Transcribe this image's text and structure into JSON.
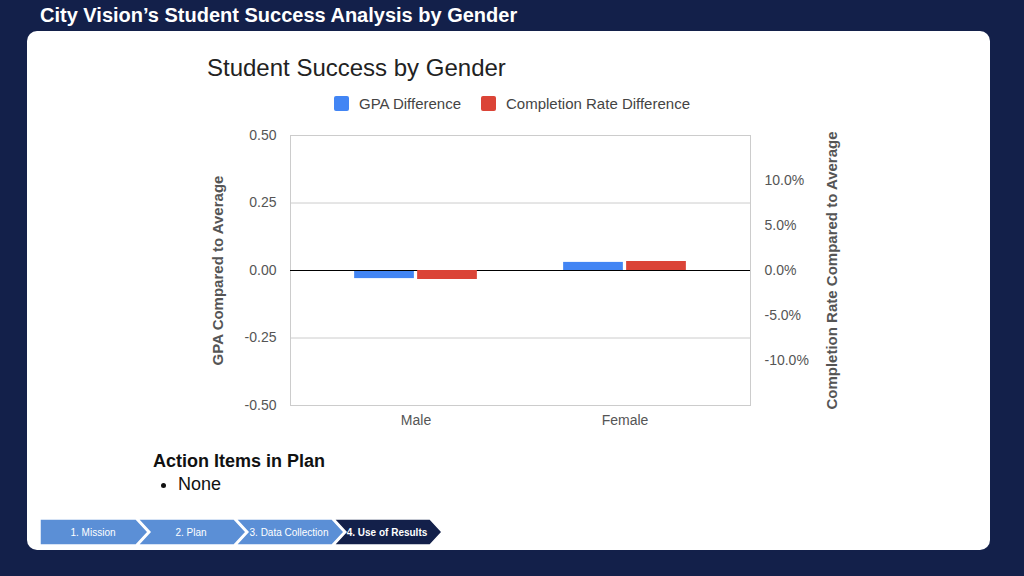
{
  "slide": {
    "title": "City Vision’s Student Success Analysis by Gender",
    "action_items": {
      "heading": "Action Items in Plan",
      "items": [
        "None"
      ]
    },
    "steps": [
      {
        "label": "1. Mission",
        "active": false
      },
      {
        "label": "2. Plan",
        "active": false
      },
      {
        "label": "3. Data Collection",
        "active": false
      },
      {
        "label": "4. Use of Results",
        "active": true
      }
    ]
  },
  "chart_data": {
    "type": "bar",
    "title": "Student Success by Gender",
    "categories": [
      "Male",
      "Female"
    ],
    "series": [
      {
        "name": "GPA Difference",
        "color": "#4285f4",
        "values": [
          -0.03,
          0.03
        ]
      },
      {
        "name": "Completion Rate Difference",
        "color": "#db4437",
        "values": [
          -1.0,
          1.0
        ],
        "axis": "y2"
      }
    ],
    "ylabel": "GPA Compared to Average",
    "y2label": "Completion Rate Compared to Average",
    "ylim": [
      -0.5,
      0.5
    ],
    "yticks": [
      {
        "value": -0.5,
        "label": "-0.50"
      },
      {
        "value": -0.25,
        "label": "-0.25"
      },
      {
        "value": 0,
        "label": "0.00"
      },
      {
        "value": 0.25,
        "label": "0.25"
      },
      {
        "value": 0.5,
        "label": "0.50"
      }
    ],
    "y2lim": [
      -15,
      15
    ],
    "y2ticks": [
      {
        "value": -10,
        "label": "-10.0%"
      },
      {
        "value": -5,
        "label": "-5.0%"
      },
      {
        "value": 0,
        "label": "0.0%"
      },
      {
        "value": 5,
        "label": "5.0%"
      },
      {
        "value": 10,
        "label": "10.0%"
      }
    ],
    "grid": true,
    "legend": "top"
  }
}
